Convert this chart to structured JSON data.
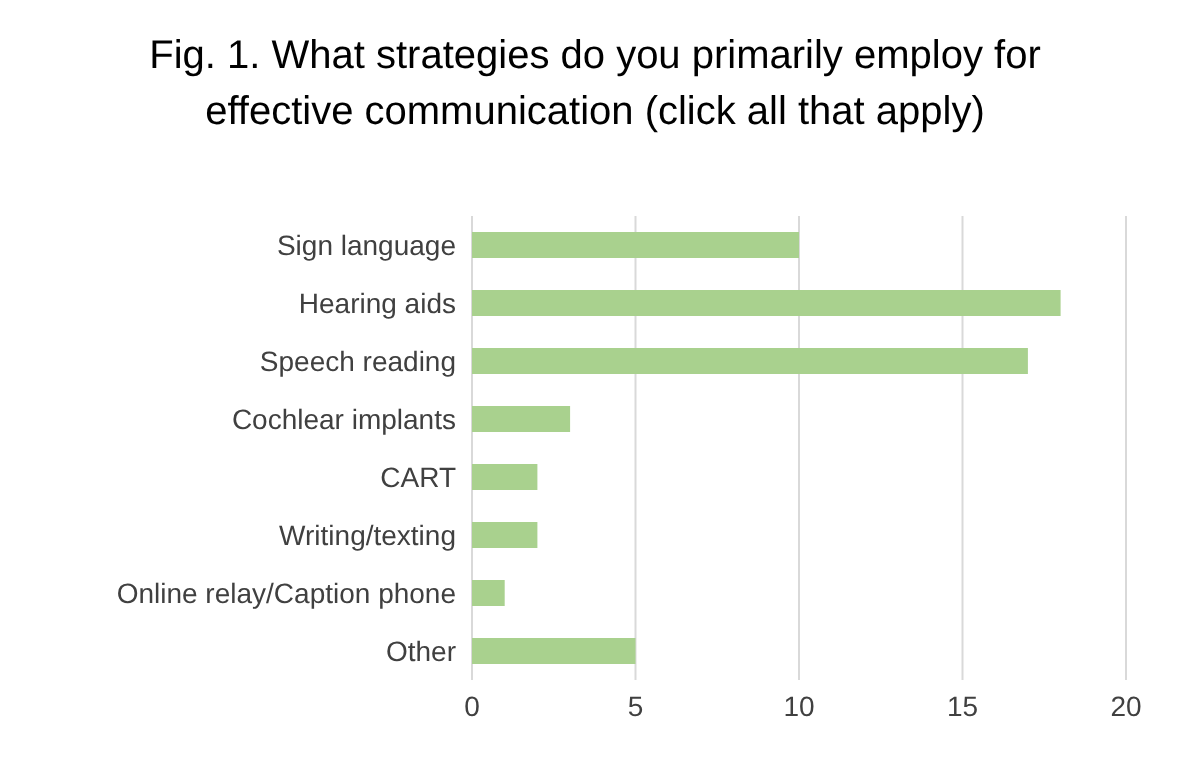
{
  "chart_data": {
    "type": "bar",
    "orientation": "horizontal",
    "title": "Fig. 1. What strategies do you primarily employ for effective communication (click all that apply)",
    "categories": [
      "Sign language",
      "Hearing aids",
      "Speech reading",
      "Cochlear implants",
      "CART",
      "Writing/texting",
      "Online relay/Caption phone",
      "Other"
    ],
    "values": [
      10,
      18,
      17,
      3,
      2,
      2,
      1,
      5
    ],
    "color": "#a9d18e",
    "xlim": [
      0,
      20
    ],
    "xticks": [
      0,
      5,
      10,
      15,
      20
    ],
    "grid": "x",
    "legend": false
  }
}
